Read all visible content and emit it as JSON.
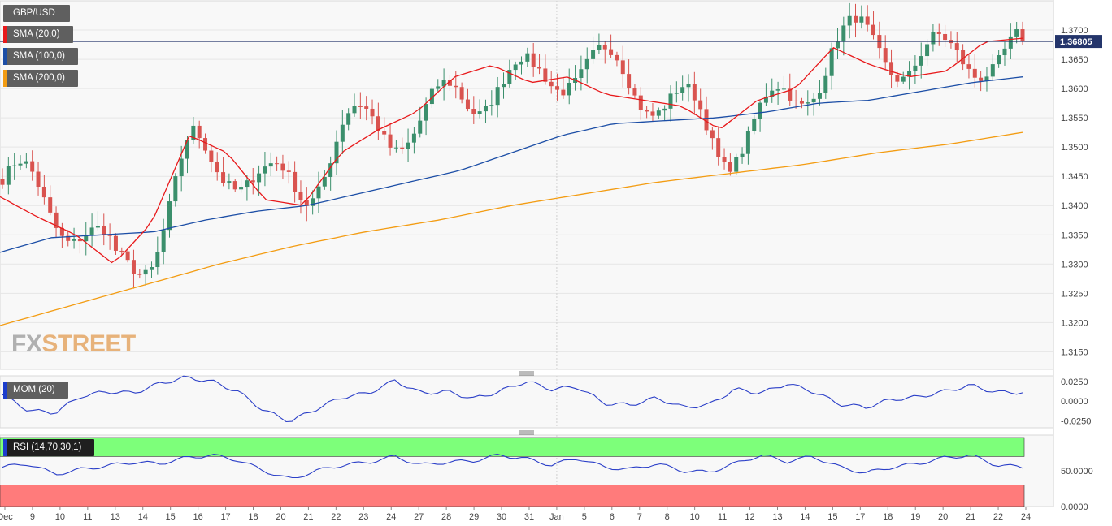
{
  "chart_data": {
    "type": "candlestick",
    "symbol": "GBP/USD",
    "last_price": "1.36805",
    "indicators": [
      {
        "name": "SMA (20,0)",
        "color": "#e8191b"
      },
      {
        "name": "SMA (100,0)",
        "color": "#1c4ea6"
      },
      {
        "name": "SMA (200,0)",
        "color": "#f39c12"
      }
    ],
    "price_axis": {
      "min": 1.312,
      "max": 1.375,
      "ticks": [
        "1.3700",
        "1.3650",
        "1.3600",
        "1.3550",
        "1.3500",
        "1.3450",
        "1.3400",
        "1.3350",
        "1.3300",
        "1.3250",
        "1.3200",
        "1.3150"
      ]
    },
    "x_ticks": [
      "Dec",
      "9",
      "10",
      "11",
      "13",
      "14",
      "15",
      "16",
      "17",
      "18",
      "20",
      "21",
      "22",
      "23",
      "24",
      "27",
      "28",
      "29",
      "30",
      "31",
      "Jan",
      "5",
      "6",
      "7",
      "8",
      "10",
      "11",
      "12",
      "13",
      "14",
      "15",
      "17",
      "18",
      "19",
      "20",
      "21",
      "22",
      "24"
    ],
    "sma20_anchors": [
      1.3415,
      1.338,
      1.335,
      1.33,
      1.337,
      1.352,
      1.349,
      1.341,
      1.34,
      1.349,
      1.353,
      1.356,
      1.362,
      1.364,
      1.361,
      1.362,
      1.359,
      1.358,
      1.357,
      1.353,
      1.358,
      1.36,
      1.367,
      1.364,
      1.362,
      1.363,
      1.368,
      1.3686
    ],
    "sma100_anchors": [
      1.332,
      1.3345,
      1.335,
      1.3355,
      1.3375,
      1.339,
      1.34,
      1.342,
      1.344,
      1.346,
      1.349,
      1.352,
      1.354,
      1.3545,
      1.355,
      1.356,
      1.3575,
      1.358,
      1.3595,
      1.361,
      1.362
    ],
    "sma200_anchors": [
      1.3195,
      1.323,
      1.3265,
      1.33,
      1.333,
      1.3355,
      1.3375,
      1.34,
      1.342,
      1.344,
      1.3455,
      1.347,
      1.349,
      1.3505,
      1.3525
    ],
    "mom": {
      "label": "MOM (20)",
      "ticks": [
        "0.0250",
        "0.0000",
        "-0.0250"
      ],
      "min": -0.034,
      "max": 0.032,
      "anchors": [
        0.008,
        -0.012,
        -0.015,
        0.006,
        0.012,
        0.01,
        0.022,
        0.03,
        0.025,
        0.012,
        -0.012,
        -0.026,
        -0.01,
        0.005,
        0.01,
        0.026,
        0.01,
        0.012,
        0.003,
        0.012,
        0.025,
        0.015,
        0.018,
        -0.003,
        -0.005,
        0.004,
        -0.008,
        -0.005,
        0.015,
        0.01,
        0.022,
        0.012,
        -0.004,
        -0.008,
        0.002,
        0.005,
        0.012,
        0.02,
        0.011,
        0.011
      ]
    },
    "rsi": {
      "label": "RSI (14,70,30,1)",
      "ticks": [
        "50.0000",
        "0.0000"
      ],
      "overbought": 70,
      "oversold": 30,
      "anchors": [
        55,
        60,
        45,
        52,
        57,
        62,
        60,
        68,
        72,
        65,
        50,
        38,
        50,
        58,
        62,
        70,
        58,
        62,
        64,
        72,
        67,
        58,
        68,
        55,
        52,
        60,
        50,
        48,
        60,
        72,
        63,
        70,
        55,
        47,
        55,
        60,
        68,
        72,
        58,
        55
      ]
    }
  },
  "logo": {
    "text": "FXSTREET"
  }
}
